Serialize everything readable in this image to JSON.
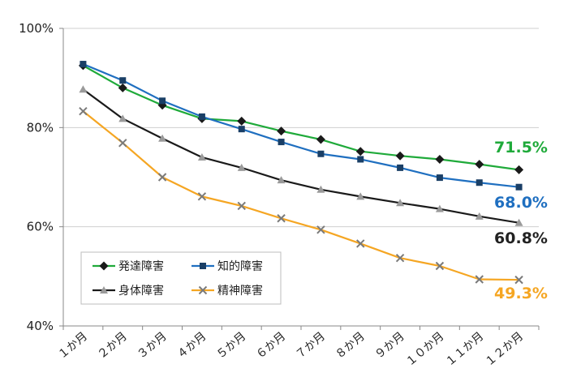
{
  "chart_data": {
    "type": "line",
    "categories": [
      "１か月",
      "２か月",
      "３か月",
      "４か月",
      "５か月",
      "６か月",
      "７か月",
      "８か月",
      "９か月",
      "１０か月",
      "１１か月",
      "１２か月"
    ],
    "yticks": [
      "40%",
      "60%",
      "80%",
      "100%"
    ],
    "ylim": [
      40,
      100
    ],
    "grid": "horizontal",
    "legend_position": "lower-left",
    "series": [
      {
        "name": "発達障害",
        "color": "#1faa3a",
        "marker": "diamond",
        "values": [
          92.5,
          88.0,
          84.5,
          81.8,
          81.3,
          79.3,
          77.6,
          75.2,
          74.3,
          73.6,
          72.6,
          71.5
        ],
        "end_label": "71.5%"
      },
      {
        "name": "知的障害",
        "color": "#1f6fc0",
        "marker": "square",
        "values": [
          92.8,
          89.5,
          85.4,
          82.2,
          79.7,
          77.1,
          74.7,
          73.6,
          71.9,
          69.9,
          68.9,
          68.0
        ],
        "end_label": "68.0%"
      },
      {
        "name": "身体障害",
        "color": "#1a1a1a",
        "marker": "triangle",
        "values": [
          87.7,
          81.8,
          77.8,
          74.0,
          71.9,
          69.4,
          67.5,
          66.1,
          64.8,
          63.6,
          62.1,
          60.8
        ],
        "end_label": "60.8%"
      },
      {
        "name": "精神障害",
        "color": "#f5a623",
        "marker": "x",
        "values": [
          83.3,
          76.9,
          70.0,
          66.1,
          64.2,
          61.7,
          59.4,
          56.6,
          53.7,
          52.1,
          49.4,
          49.3
        ],
        "end_label": "49.3%"
      }
    ],
    "end_label_colors": [
      "#1faa3a",
      "#1f6fc0",
      "#222222",
      "#f5a623"
    ]
  }
}
